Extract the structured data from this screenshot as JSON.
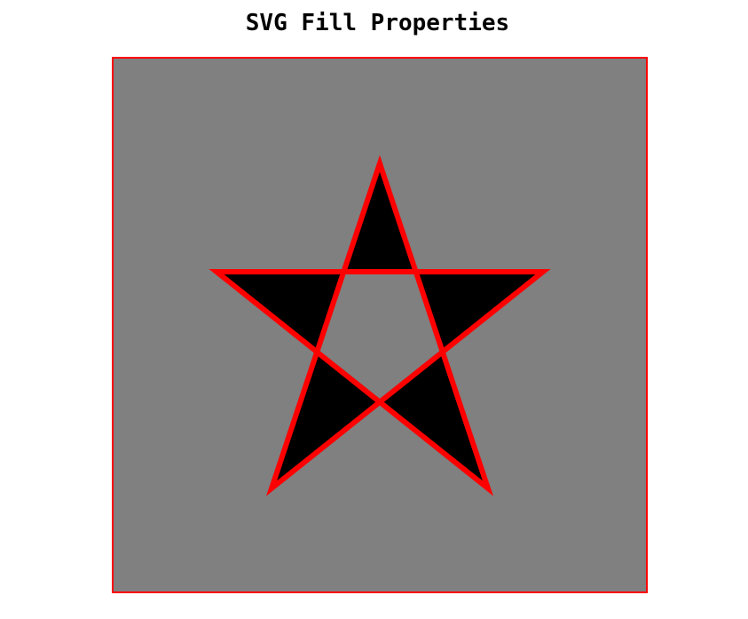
{
  "title": "SVG Fill Properties",
  "colors": {
    "page_background": "#ffffff",
    "canvas_background": "#808080",
    "canvas_border": "#ff0000",
    "star_fill": "#000000",
    "star_stroke": "#ff0000"
  },
  "star": {
    "fill_rule": "evenodd"
  }
}
